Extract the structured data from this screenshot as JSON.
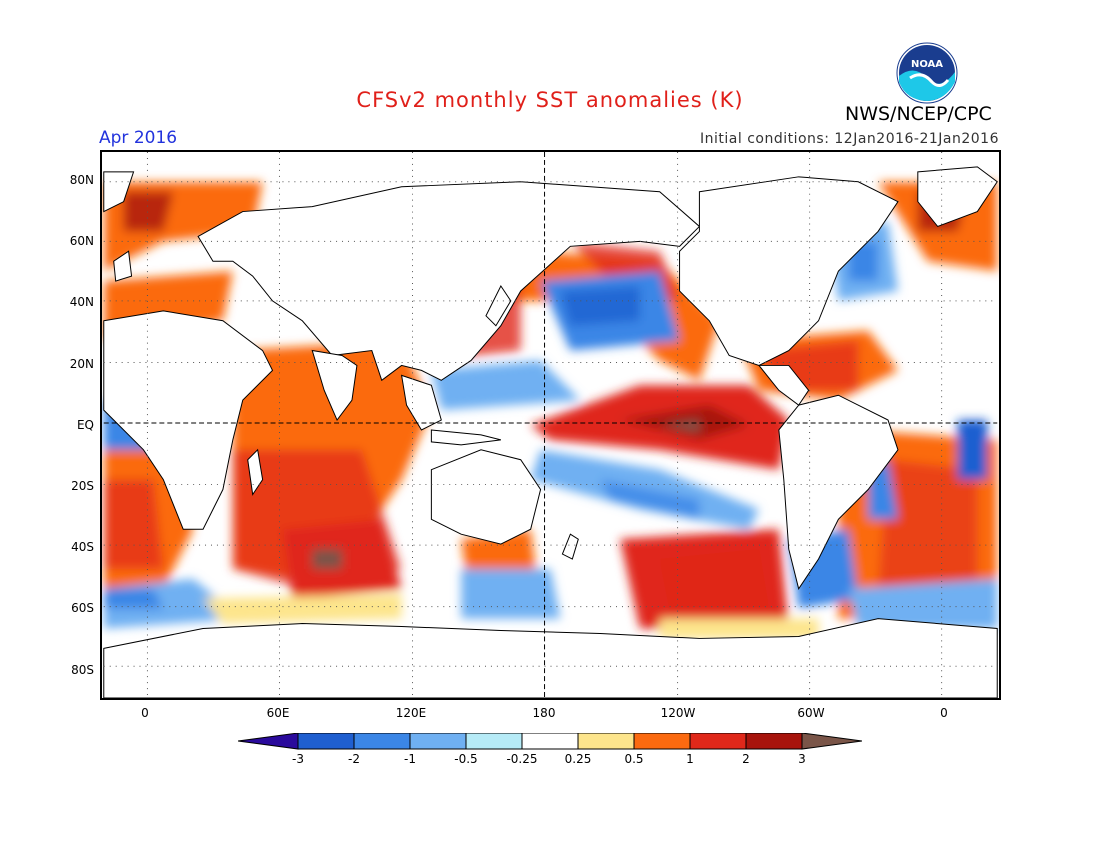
{
  "header": {
    "title": "CFSv2 monthly SST anomalies (K)",
    "org": "NWS/NCEP/CPC",
    "logo_text": "NOAA",
    "month": "Apr 2016",
    "initial_conditions": "Initial conditions: 12Jan2016-21Jan2016"
  },
  "axes": {
    "y_labels": [
      "80N",
      "60N",
      "40N",
      "20N",
      "EQ",
      "20S",
      "40S",
      "60S",
      "80S"
    ],
    "x_labels": [
      "0",
      "60E",
      "120E",
      "180",
      "120W",
      "60W",
      "0"
    ]
  },
  "colorbar": {
    "labels": [
      "-3",
      "-2",
      "-1",
      "-0.5",
      "-0.25",
      "0.25",
      "0.5",
      "1",
      "2",
      "3"
    ],
    "colors": [
      "#2a0a9c",
      "#1f5fd0",
      "#3b86e6",
      "#6fb0f2",
      "#b6ebf7",
      "#ffffff",
      "#fde58c",
      "#fb6a10",
      "#e0281a",
      "#a8140c",
      "#7a5548"
    ]
  },
  "map": {
    "land_color": "#ffffff",
    "coast_color": "#000000",
    "grid_style": "dotted",
    "reference_lines": [
      "EQ",
      "180"
    ]
  }
}
